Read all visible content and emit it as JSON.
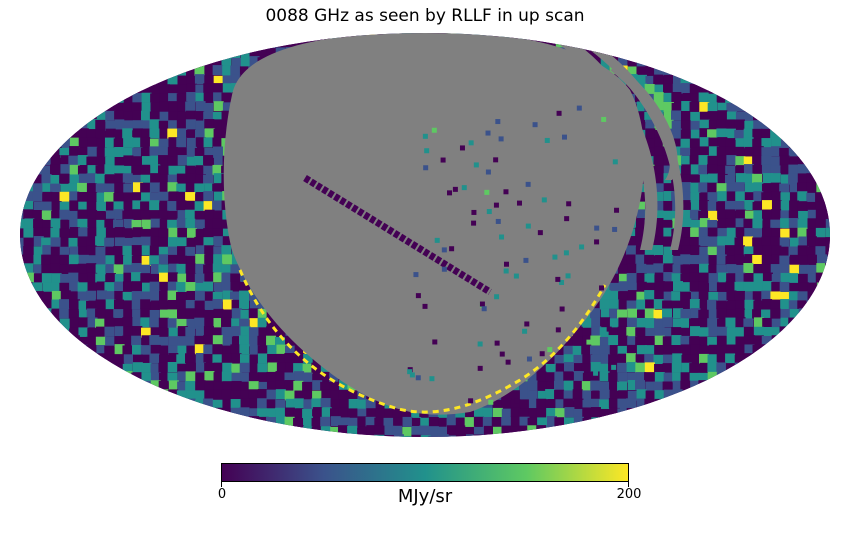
{
  "chart_data": {
    "type": "heatmap",
    "projection": "mollweide",
    "title": "0088 GHz as seen by RLLF in up scan",
    "colorbar": {
      "colormap": "viridis",
      "colors": [
        "#440154",
        "#3b528b",
        "#21918c",
        "#5ec962",
        "#fde725"
      ],
      "min": 0,
      "max": 200,
      "tick_labels": [
        "0",
        "200"
      ],
      "label": "MJy/sr"
    },
    "unseen_color": "#808080",
    "grid": false
  }
}
